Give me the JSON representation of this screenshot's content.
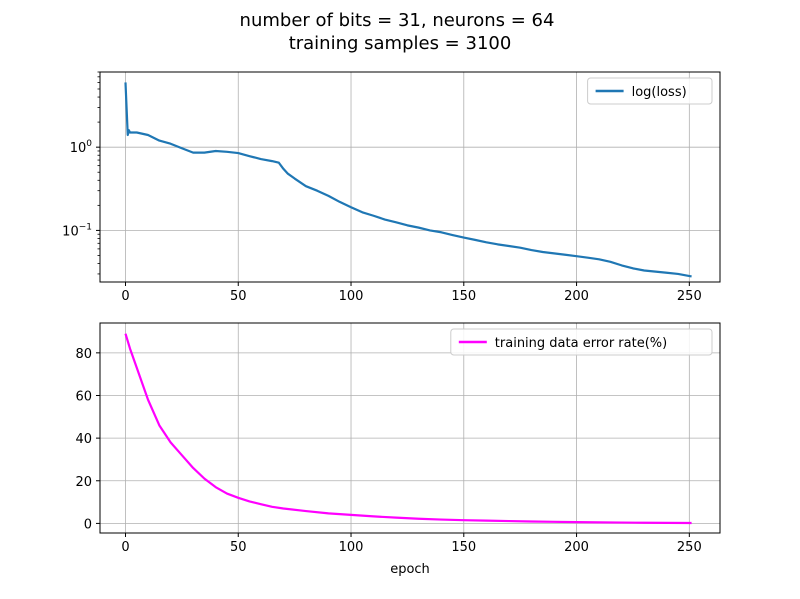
{
  "figure": {
    "title_line1": "number of bits = 31, neurons = 64",
    "title_line2": "training samples = 3100"
  },
  "chart_data": [
    {
      "type": "line",
      "yscale": "log",
      "xlim": [
        -11.3,
        263.6
      ],
      "ylim": [
        0.024,
        8.0
      ],
      "x_ticks": [
        0,
        50,
        100,
        150,
        200,
        250
      ],
      "y_ticks": [
        {
          "value": 1.0,
          "mantissa": "10",
          "exp": "0"
        },
        {
          "value": 0.1,
          "mantissa": "10",
          "exp": "−1"
        }
      ],
      "y_minor_ticks": [
        0.03,
        0.04,
        0.05,
        0.06,
        0.07,
        0.08,
        0.09,
        0.2,
        0.3,
        0.4,
        0.5,
        0.6,
        0.7,
        0.8,
        0.9,
        2,
        3,
        4,
        5,
        6,
        7,
        8
      ],
      "grid": true,
      "legend_position": "upper right",
      "xlabel": "",
      "ylabel": "",
      "series": [
        {
          "name": "log(loss)",
          "color": "#1f77b4",
          "x": [
            0,
            1,
            1.5,
            2,
            5,
            10,
            15,
            20,
            25,
            30,
            35,
            40,
            45,
            50,
            55,
            60,
            65,
            68,
            70,
            72,
            75,
            80,
            85,
            90,
            95,
            100,
            105,
            110,
            115,
            120,
            125,
            130,
            135,
            140,
            145,
            150,
            155,
            160,
            165,
            170,
            175,
            180,
            185,
            190,
            195,
            200,
            205,
            210,
            215,
            220,
            225,
            230,
            235,
            240,
            245,
            251
          ],
          "y": [
            6.0,
            1.4,
            1.6,
            1.5,
            1.5,
            1.4,
            1.2,
            1.1,
            0.97,
            0.86,
            0.86,
            0.9,
            0.88,
            0.85,
            0.78,
            0.72,
            0.68,
            0.65,
            0.55,
            0.48,
            0.42,
            0.34,
            0.3,
            0.26,
            0.22,
            0.19,
            0.165,
            0.15,
            0.135,
            0.125,
            0.115,
            0.108,
            0.1,
            0.095,
            0.088,
            0.082,
            0.077,
            0.072,
            0.068,
            0.065,
            0.062,
            0.058,
            0.055,
            0.053,
            0.051,
            0.049,
            0.047,
            0.045,
            0.042,
            0.038,
            0.035,
            0.033,
            0.032,
            0.031,
            0.03,
            0.028
          ]
        }
      ]
    },
    {
      "type": "line",
      "yscale": "linear",
      "xlim": [
        -11.3,
        263.6
      ],
      "ylim": [
        -4.5,
        94
      ],
      "x_ticks": [
        0,
        50,
        100,
        150,
        200,
        250
      ],
      "y_ticks": [
        0,
        20,
        40,
        60,
        80
      ],
      "grid": true,
      "legend_position": "upper right",
      "xlabel": "epoch",
      "ylabel": "",
      "series": [
        {
          "name": "training data error rate(%)",
          "color": "#ff00ff",
          "x": [
            0,
            2,
            5,
            10,
            15,
            20,
            25,
            30,
            35,
            40,
            45,
            50,
            55,
            60,
            65,
            70,
            80,
            90,
            100,
            110,
            120,
            130,
            140,
            150,
            160,
            170,
            180,
            190,
            200,
            210,
            220,
            230,
            240,
            251
          ],
          "y": [
            89,
            82,
            73,
            58,
            46,
            38,
            32,
            26,
            21,
            17,
            14,
            12,
            10.3,
            9,
            7.8,
            7,
            5.8,
            4.7,
            4,
            3.3,
            2.7,
            2.2,
            1.8,
            1.5,
            1.3,
            1.1,
            0.9,
            0.75,
            0.6,
            0.5,
            0.4,
            0.3,
            0.25,
            0.2
          ]
        }
      ]
    }
  ]
}
